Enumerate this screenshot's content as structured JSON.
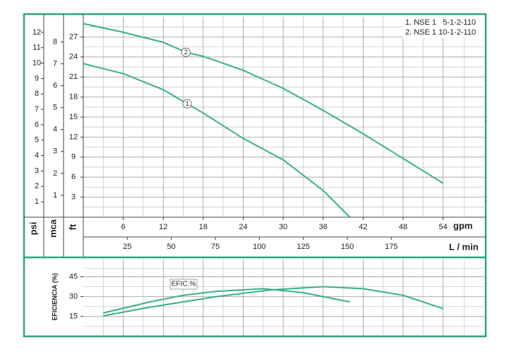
{
  "chart_data": [
    {
      "type": "line",
      "x_label": "gpm",
      "x2_label": "L / min",
      "y_label": "ft",
      "y2_label": "mca",
      "y3_label": "psi",
      "xlim": [
        0,
        60.4
      ],
      "xticks": [
        6,
        12,
        18,
        24,
        30,
        36,
        42,
        48,
        54
      ],
      "x2lim": [
        0,
        228.6
      ],
      "x2ticks": [
        25,
        50,
        75,
        100,
        125,
        150,
        175
      ],
      "ylim": [
        0,
        30
      ],
      "yticks": [
        3,
        6,
        9,
        12,
        15,
        18,
        21,
        24,
        27
      ],
      "y2lim": [
        0,
        9.14
      ],
      "y2ticks": [
        1,
        2,
        3,
        4,
        5,
        6,
        7,
        8
      ],
      "y3lim": [
        0,
        13
      ],
      "y3ticks": [
        1,
        2,
        3,
        4,
        5,
        6,
        7,
        8,
        9,
        10,
        11,
        12
      ],
      "grid": true,
      "series": [
        {
          "name": "1",
          "legend": "1. NSE 1   5-1-2-110",
          "color": "#3aaf8a",
          "x": [
            0,
            6,
            12,
            15.6,
            18,
            24,
            30,
            36,
            40
          ],
          "values": [
            23,
            21.5,
            19.1,
            17,
            15.6,
            11.8,
            8.6,
            4,
            0
          ]
        },
        {
          "name": "2",
          "legend": "2. NSE 1 10-1-2-110",
          "color": "#3aaf8a",
          "x": [
            0,
            6,
            12,
            15.4,
            18,
            24,
            30,
            36,
            42,
            48,
            54
          ],
          "values": [
            29,
            27.7,
            26.2,
            24.7,
            24.1,
            22,
            19.3,
            16,
            12.5,
            8.8,
            5.1
          ]
        }
      ]
    },
    {
      "type": "line",
      "y_label": "EFICIENCIA (%)",
      "annotation": "EFIC.%",
      "xlim": [
        0,
        60.4
      ],
      "ylim": [
        0,
        58
      ],
      "yticks": [
        15,
        30,
        45
      ],
      "grid": true,
      "series": [
        {
          "color": "#3aaf8a",
          "x": [
            3,
            10,
            15,
            20,
            27,
            33,
            40
          ],
          "values": [
            17.7,
            26,
            31,
            34,
            36,
            33,
            26
          ]
        },
        {
          "color": "#3aaf8a",
          "x": [
            3,
            10,
            20,
            28,
            36,
            42,
            48,
            54
          ],
          "values": [
            15.5,
            22,
            30,
            35,
            37.5,
            36,
            31,
            21
          ]
        }
      ]
    }
  ]
}
